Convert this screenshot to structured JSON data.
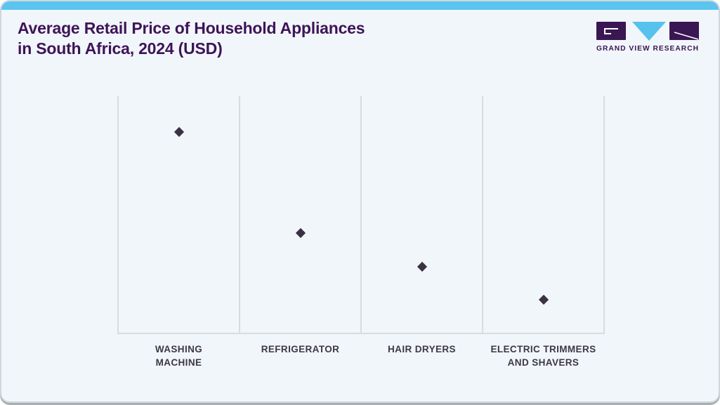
{
  "header": {
    "title_line1": "Average Retail Price of Household Appliances",
    "title_line2": "in South Africa, 2024 (USD)",
    "brand_name": "GRAND VIEW RESEARCH"
  },
  "colors": {
    "accent_bar": "#5bc4ef",
    "title_text": "#3e1457",
    "logo_purple": "#3a1653",
    "logo_cyan": "#56c2ee",
    "marker": "#3a3142",
    "gridline": "#d9dcde",
    "axis_label": "#3d3846",
    "card_background": "#f1f6fa"
  },
  "chart_data": {
    "type": "scatter",
    "title": "Average Retail Price of Household Appliances in South Africa, 2024 (USD)",
    "marker_shape": "diamond",
    "legend": false,
    "gridlines": "vertical-only",
    "y_axis": {
      "labeled": false,
      "note": "no tick marks, tick labels or numeric values are rendered on the value axis"
    },
    "categories": [
      "Washing Machine",
      "Refrigerator",
      "Hair Dryers",
      "Electric Trimmers and Shavers"
    ],
    "points": [
      {
        "label": "WASHING\nMACHINE",
        "relative_value": 0.85
      },
      {
        "label": "REFRIGERATOR",
        "relative_value": 0.42
      },
      {
        "label": "HAIR DRYERS",
        "relative_value": 0.28
      },
      {
        "label": "ELECTRIC TRIMMERS\nAND SHAVERS",
        "relative_value": 0.14
      }
    ]
  }
}
